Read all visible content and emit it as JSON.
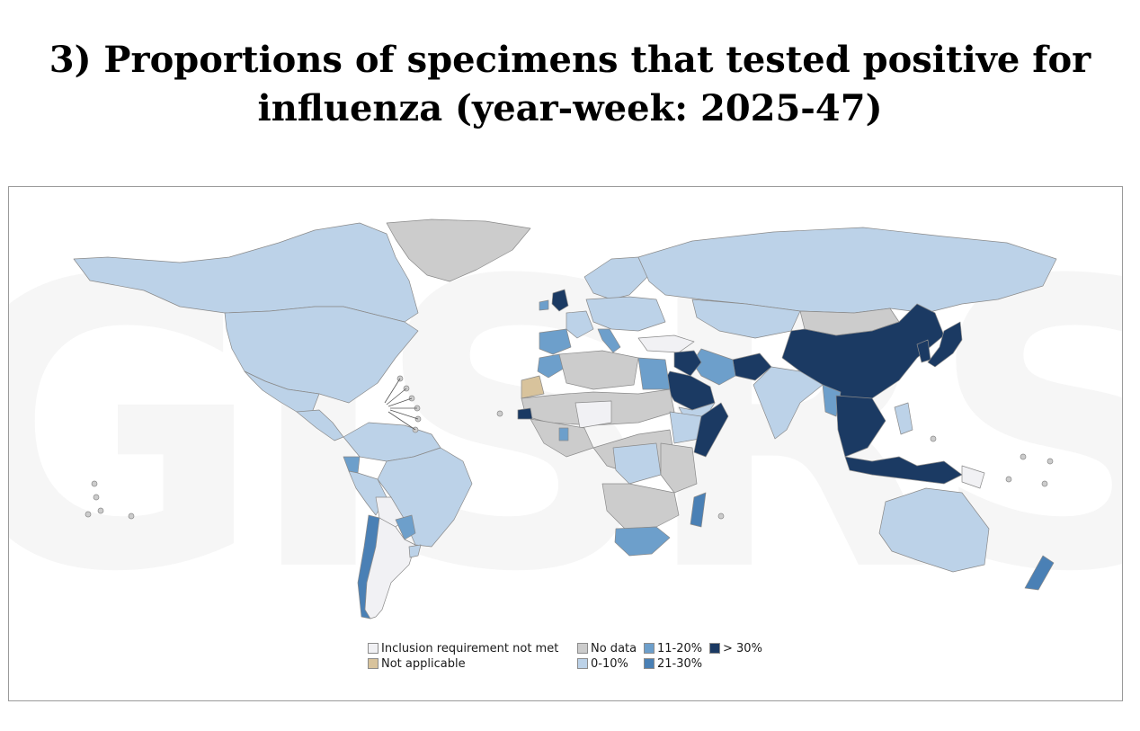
{
  "title": {
    "line1": "3) Proportions of specimens that tested positive for",
    "line2": "influenza (year-week: 2025-47)"
  },
  "watermark": "GISRS",
  "colors": {
    "inclusion_not_met": "#f1f1f4",
    "no_data": "#cccccc",
    "not_applicable": "#d8c39c",
    "p0_10": "#bcd2e8",
    "p11_20": "#6d9fcb",
    "p21_30": "#4a80b5",
    "p30plus": "#1b3a63",
    "border": "#8a8a8a"
  },
  "legend": [
    {
      "label": "Inclusion requirement not met",
      "color_key": "inclusion_not_met"
    },
    {
      "label": "Not applicable",
      "color_key": "not_applicable"
    },
    {
      "label": "No data",
      "color_key": "no_data"
    },
    {
      "label": "0-10%",
      "color_key": "p0_10"
    },
    {
      "label": "11-20%",
      "color_key": "p11_20"
    },
    {
      "label": "21-30%",
      "color_key": "p21_30"
    },
    {
      "label": "> 30%",
      "color_key": "p30plus"
    }
  ],
  "regions": [
    {
      "name": "canada-alaska",
      "category": "p0_10"
    },
    {
      "name": "usa",
      "category": "p0_10"
    },
    {
      "name": "greenland",
      "category": "no_data"
    },
    {
      "name": "mexico",
      "category": "p0_10"
    },
    {
      "name": "central-america",
      "category": "p0_10"
    },
    {
      "name": "colombia-venezuela",
      "category": "p0_10"
    },
    {
      "name": "ecuador",
      "category": "p11_20"
    },
    {
      "name": "peru",
      "category": "p0_10"
    },
    {
      "name": "brazil",
      "category": "p0_10"
    },
    {
      "name": "bolivia",
      "category": "inclusion_not_met"
    },
    {
      "name": "paraguay",
      "category": "p11_20"
    },
    {
      "name": "chile",
      "category": "p21_30"
    },
    {
      "name": "argentina",
      "category": "inclusion_not_met"
    },
    {
      "name": "uruguay",
      "category": "p0_10"
    },
    {
      "name": "united-kingdom",
      "category": "p30plus"
    },
    {
      "name": "ireland",
      "category": "p11_20"
    },
    {
      "name": "iberia",
      "category": "p11_20"
    },
    {
      "name": "france",
      "category": "p0_10"
    },
    {
      "name": "italy",
      "category": "p11_20"
    },
    {
      "name": "scandinavia",
      "category": "p0_10"
    },
    {
      "name": "central-europe",
      "category": "p0_10"
    },
    {
      "name": "russia",
      "category": "p0_10"
    },
    {
      "name": "kazakhstan",
      "category": "p0_10"
    },
    {
      "name": "mongolia",
      "category": "no_data"
    },
    {
      "name": "china",
      "category": "p30plus"
    },
    {
      "name": "korea",
      "category": "p30plus"
    },
    {
      "name": "japan",
      "category": "p30plus"
    },
    {
      "name": "india",
      "category": "p0_10"
    },
    {
      "name": "afghanistan",
      "category": "p30plus"
    },
    {
      "name": "iran",
      "category": "p11_20"
    },
    {
      "name": "iraq",
      "category": "p30plus"
    },
    {
      "name": "saudi-arabia",
      "category": "p30plus"
    },
    {
      "name": "yemen",
      "category": "p0_10"
    },
    {
      "name": "turkey",
      "category": "inclusion_not_met"
    },
    {
      "name": "egypt",
      "category": "p11_20"
    },
    {
      "name": "morocco",
      "category": "p11_20"
    },
    {
      "name": "western-sahara",
      "category": "not_applicable"
    },
    {
      "name": "algeria-libya",
      "category": "no_data"
    },
    {
      "name": "sahel",
      "category": "no_data"
    },
    {
      "name": "niger-chad",
      "category": "inclusion_not_met"
    },
    {
      "name": "west-africa",
      "category": "no_data"
    },
    {
      "name": "senegal",
      "category": "p30plus"
    },
    {
      "name": "ghana",
      "category": "p11_20"
    },
    {
      "name": "central-africa",
      "category": "no_data"
    },
    {
      "name": "drc",
      "category": "p0_10"
    },
    {
      "name": "ethiopia",
      "category": "p0_10"
    },
    {
      "name": "somalia",
      "category": "p30plus"
    },
    {
      "name": "east-africa",
      "category": "no_data"
    },
    {
      "name": "southern-africa",
      "category": "no_data"
    },
    {
      "name": "south-africa",
      "category": "p11_20"
    },
    {
      "name": "madagascar",
      "category": "p21_30"
    },
    {
      "name": "mainland-southeast-asia",
      "category": "p30plus"
    },
    {
      "name": "myanmar",
      "category": "p11_20"
    },
    {
      "name": "philippines",
      "category": "p0_10"
    },
    {
      "name": "indonesia",
      "category": "p30plus"
    },
    {
      "name": "papua",
      "category": "inclusion_not_met"
    },
    {
      "name": "australia",
      "category": "p0_10"
    },
    {
      "name": "new-zealand",
      "category": "p21_30"
    }
  ]
}
